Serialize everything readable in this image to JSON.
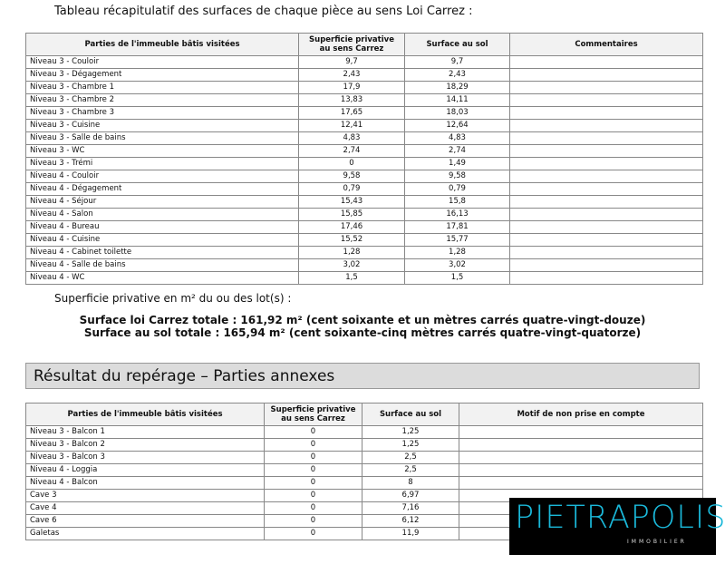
{
  "title": "Tableau récapitulatif des surfaces de chaque pièce au sens Loi Carrez :",
  "table1": {
    "headers": [
      "Parties de l'immeuble bâtis visitées",
      "Superficie privative au sens Carrez",
      "Surface au sol",
      "Commentaires"
    ],
    "rows": [
      [
        "Niveau 3 - Couloir",
        "9,7",
        "9,7",
        ""
      ],
      [
        "Niveau 3 - Dégagement",
        "2,43",
        "2,43",
        ""
      ],
      [
        "Niveau 3 - Chambre 1",
        "17,9",
        "18,29",
        ""
      ],
      [
        "Niveau 3 - Chambre 2",
        "13,83",
        "14,11",
        ""
      ],
      [
        "Niveau 3 - Chambre 3",
        "17,65",
        "18,03",
        ""
      ],
      [
        "Niveau 3 - Cuisine",
        "12,41",
        "12,64",
        ""
      ],
      [
        "Niveau 3 - Salle de bains",
        "4,83",
        "4,83",
        ""
      ],
      [
        "Niveau 3 - WC",
        "2,74",
        "2,74",
        ""
      ],
      [
        "Niveau 3 - Trémi",
        "0",
        "1,49",
        ""
      ],
      [
        "Niveau 4 - Couloir",
        "9,58",
        "9,58",
        ""
      ],
      [
        "Niveau 4 - Dégagement",
        "0,79",
        "0,79",
        ""
      ],
      [
        "Niveau 4 - Séjour",
        "15,43",
        "15,8",
        ""
      ],
      [
        "Niveau 4 - Salon",
        "15,85",
        "16,13",
        ""
      ],
      [
        "Niveau 4 - Bureau",
        "17,46",
        "17,81",
        ""
      ],
      [
        "Niveau 4 - Cuisine",
        "15,52",
        "15,77",
        ""
      ],
      [
        "Niveau 4 - Cabinet toilette",
        "1,28",
        "1,28",
        ""
      ],
      [
        "Niveau 4 - Salle de bains",
        "3,02",
        "3,02",
        ""
      ],
      [
        "Niveau 4 - WC",
        "1,5",
        "1,5",
        ""
      ]
    ]
  },
  "subtitle": "Superficie privative en m² du ou des lot(s) :",
  "total_carrez": "Surface loi Carrez totale : 161,92 m² (cent soixante et un mètres carrés quatre-vingt-douze)",
  "total_sol": "Surface au sol totale : 165,94 m² (cent soixante-cinq mètres carrés quatre-vingt-quatorze)",
  "section_title": "Résultat du repérage – Parties annexes",
  "table2": {
    "headers": [
      "Parties de l'immeuble bâtis visitées",
      "Superficie privative au sens Carrez",
      "Surface au sol",
      "Motif de non prise en compte"
    ],
    "rows": [
      [
        "Niveau 3 - Balcon 1",
        "0",
        "1,25",
        ""
      ],
      [
        "Niveau 3 - Balcon 2",
        "0",
        "1,25",
        ""
      ],
      [
        "Niveau 3 - Balcon 3",
        "0",
        "2,5",
        ""
      ],
      [
        "Niveau 4 - Loggia",
        "0",
        "2,5",
        ""
      ],
      [
        "Niveau 4 - Balcon",
        "0",
        "8",
        ""
      ],
      [
        "Cave 3",
        "0",
        "6,97",
        ""
      ],
      [
        "Cave 4",
        "0",
        "7,16",
        ""
      ],
      [
        "Cave 6",
        "0",
        "6,12",
        ""
      ],
      [
        "Galetas",
        "0",
        "11,9",
        ""
      ]
    ]
  },
  "logo": {
    "name": "PIETRAPOLIS",
    "tagline": "IMMOBILIER",
    "color": "#1ab8d9"
  }
}
